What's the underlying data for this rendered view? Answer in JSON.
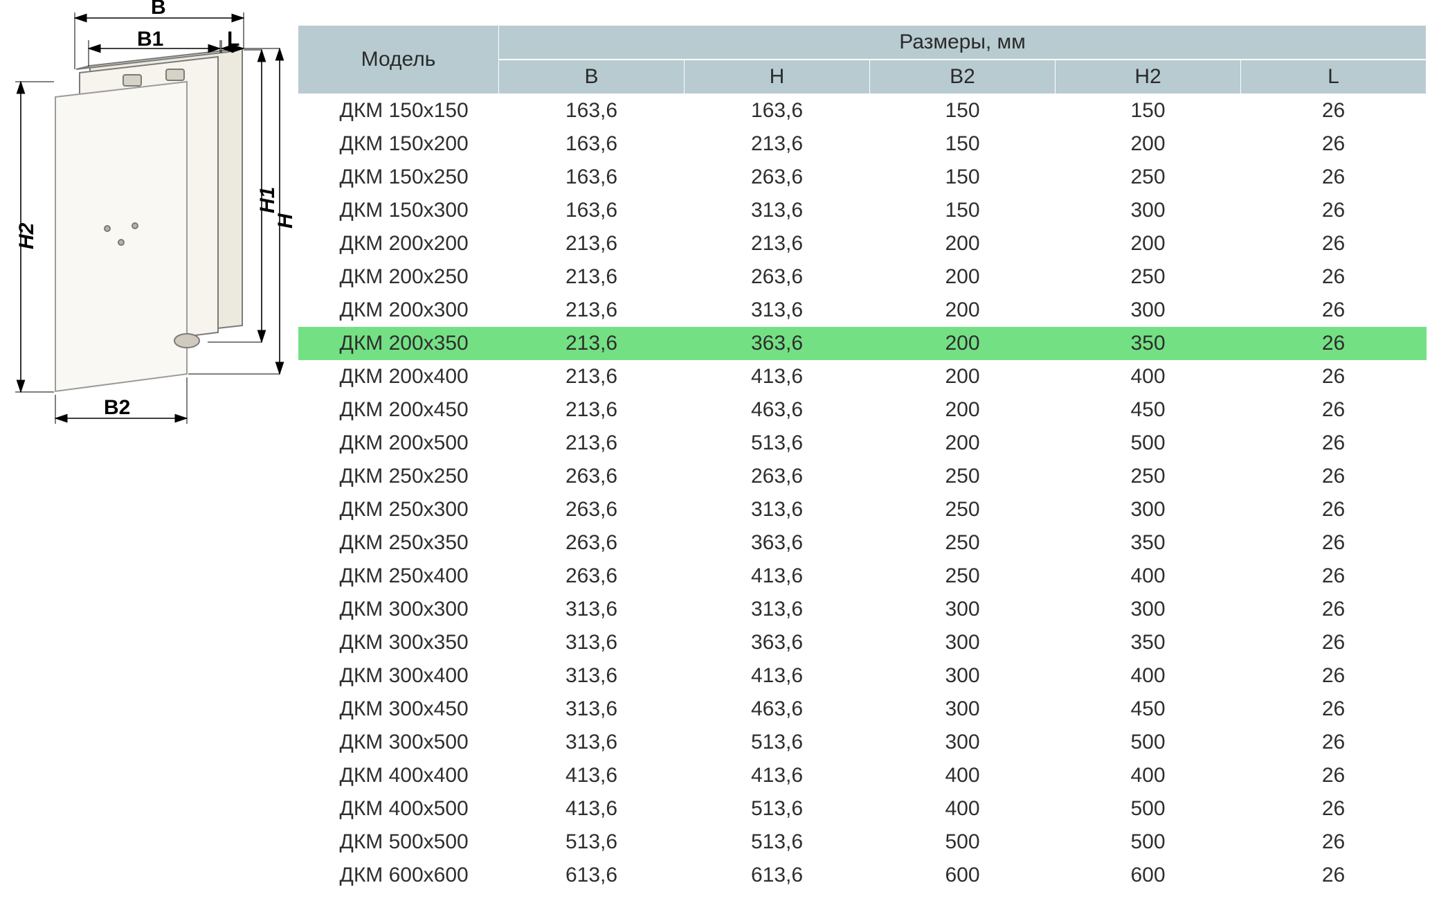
{
  "diagram": {
    "labels": {
      "B": "B",
      "B1": "B1",
      "L": "L",
      "B2": "B2",
      "H": "H",
      "H1": "H1",
      "H2": "H2"
    },
    "line_color": "#000000",
    "panel_fill": "#f3efe8",
    "panel_stroke": "#a8a8a8"
  },
  "table": {
    "header": {
      "model": "Модель",
      "dims_group": "Размеры, мм",
      "cols": [
        "B",
        "H",
        "B2",
        "H2",
        "L"
      ]
    },
    "header_bg": "#b8cbd0",
    "highlight_bg": "#74e084",
    "text_color": "#2e2e2e",
    "font_size_pt": 22,
    "rows": [
      {
        "model": "ДКМ 150х150",
        "B": "163,6",
        "H": "163,6",
        "B2": "150",
        "H2": "150",
        "L": "26"
      },
      {
        "model": "ДКМ 150х200",
        "B": "163,6",
        "H": "213,6",
        "B2": "150",
        "H2": "200",
        "L": "26"
      },
      {
        "model": "ДКМ 150х250",
        "B": "163,6",
        "H": "263,6",
        "B2": "150",
        "H2": "250",
        "L": "26"
      },
      {
        "model": "ДКМ 150х300",
        "B": "163,6",
        "H": "313,6",
        "B2": "150",
        "H2": "300",
        "L": "26"
      },
      {
        "model": "ДКМ 200х200",
        "B": "213,6",
        "H": "213,6",
        "B2": "200",
        "H2": "200",
        "L": "26"
      },
      {
        "model": "ДКМ 200х250",
        "B": "213,6",
        "H": "263,6",
        "B2": "200",
        "H2": "250",
        "L": "26"
      },
      {
        "model": "ДКМ 200х300",
        "B": "213,6",
        "H": "313,6",
        "B2": "200",
        "H2": "300",
        "L": "26"
      },
      {
        "model": "ДКМ 200х350",
        "B": "213,6",
        "H": "363,6",
        "B2": "200",
        "H2": "350",
        "L": "26",
        "highlight": true
      },
      {
        "model": "ДКМ 200х400",
        "B": "213,6",
        "H": "413,6",
        "B2": "200",
        "H2": "400",
        "L": "26"
      },
      {
        "model": "ДКМ 200х450",
        "B": "213,6",
        "H": "463,6",
        "B2": "200",
        "H2": "450",
        "L": "26"
      },
      {
        "model": "ДКМ 200х500",
        "B": "213,6",
        "H": "513,6",
        "B2": "200",
        "H2": "500",
        "L": "26"
      },
      {
        "model": "ДКМ 250х250",
        "B": "263,6",
        "H": "263,6",
        "B2": "250",
        "H2": "250",
        "L": "26"
      },
      {
        "model": "ДКМ 250х300",
        "B": "263,6",
        "H": "313,6",
        "B2": "250",
        "H2": "300",
        "L": "26"
      },
      {
        "model": "ДКМ 250х350",
        "B": "263,6",
        "H": "363,6",
        "B2": "250",
        "H2": "350",
        "L": "26"
      },
      {
        "model": "ДКМ 250х400",
        "B": "263,6",
        "H": "413,6",
        "B2": "250",
        "H2": "400",
        "L": "26"
      },
      {
        "model": "ДКМ 300х300",
        "B": "313,6",
        "H": "313,6",
        "B2": "300",
        "H2": "300",
        "L": "26"
      },
      {
        "model": "ДКМ 300х350",
        "B": "313,6",
        "H": "363,6",
        "B2": "300",
        "H2": "350",
        "L": "26"
      },
      {
        "model": "ДКМ 300х400",
        "B": "313,6",
        "H": "413,6",
        "B2": "300",
        "H2": "400",
        "L": "26"
      },
      {
        "model": "ДКМ 300х450",
        "B": "313,6",
        "H": "463,6",
        "B2": "300",
        "H2": "450",
        "L": "26"
      },
      {
        "model": "ДКМ 300х500",
        "B": "313,6",
        "H": "513,6",
        "B2": "300",
        "H2": "500",
        "L": "26"
      },
      {
        "model": "ДКМ 400х400",
        "B": "413,6",
        "H": "413,6",
        "B2": "400",
        "H2": "400",
        "L": "26"
      },
      {
        "model": "ДКМ 400х500",
        "B": "413,6",
        "H": "513,6",
        "B2": "400",
        "H2": "500",
        "L": "26"
      },
      {
        "model": "ДКМ 500х500",
        "B": "513,6",
        "H": "513,6",
        "B2": "500",
        "H2": "500",
        "L": "26"
      },
      {
        "model": "ДКМ 600х600",
        "B": "613,6",
        "H": "613,6",
        "B2": "600",
        "H2": "600",
        "L": "26"
      }
    ]
  }
}
